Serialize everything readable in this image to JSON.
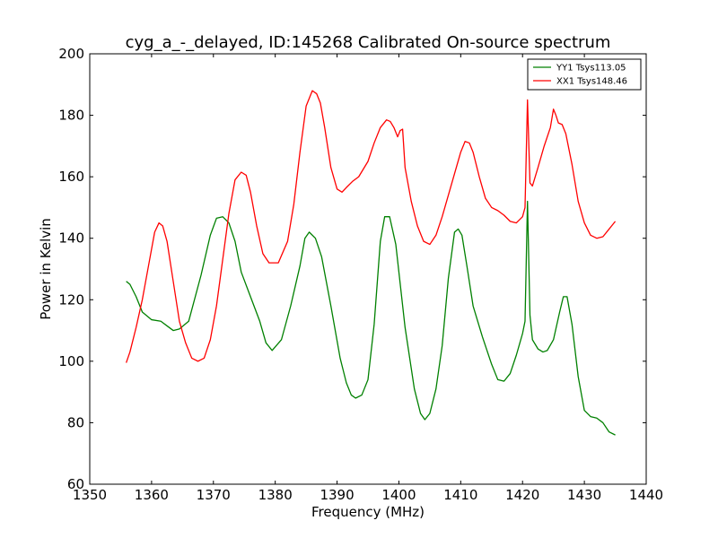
{
  "chart_data": {
    "type": "line",
    "title": "cyg_a_-_delayed, ID:145268 Calibrated On-source spectrum",
    "xlabel": "Frequency (MHz)",
    "ylabel": "Power in Kelvin",
    "xlim": [
      1350,
      1440
    ],
    "ylim": [
      60,
      200
    ],
    "xticks": [
      1350,
      1360,
      1370,
      1380,
      1390,
      1400,
      1410,
      1420,
      1430,
      1440
    ],
    "yticks": [
      60,
      80,
      100,
      120,
      140,
      160,
      180,
      200
    ],
    "grid": false,
    "legend_position": "top-right",
    "series": [
      {
        "name": "YY1 Tsys113.05",
        "color": "#008000",
        "x": [
          1355.9,
          1356.5,
          1357.5,
          1358.5,
          1360,
          1361.5,
          1362.5,
          1363.5,
          1364.5,
          1366,
          1368,
          1369.5,
          1370.5,
          1371.5,
          1372.5,
          1373.5,
          1374.5,
          1376,
          1377.5,
          1378.5,
          1379.5,
          1381,
          1382.5,
          1384,
          1384.8,
          1385.5,
          1386.5,
          1387.5,
          1389,
          1390.5,
          1391.5,
          1392.3,
          1393,
          1394,
          1395,
          1396,
          1397,
          1397.7,
          1398.5,
          1399.5,
          1401,
          1402.5,
          1403.5,
          1404.2,
          1405,
          1406,
          1407,
          1408,
          1409,
          1409.6,
          1410.2,
          1411,
          1412,
          1413.5,
          1415,
          1416,
          1417,
          1418,
          1419,
          1420,
          1420.4,
          1420.8,
          1421.2,
          1421.6,
          1422.5,
          1423.3,
          1424,
          1425,
          1426,
          1426.6,
          1427.2,
          1428,
          1429,
          1430,
          1431,
          1432,
          1433,
          1434,
          1435
        ],
        "values": [
          126,
          125,
          121,
          116,
          113.5,
          113,
          111.5,
          110,
          110.5,
          113,
          128,
          141,
          146.5,
          147,
          145,
          139,
          129,
          121,
          113,
          106,
          103.5,
          107,
          118,
          131,
          140,
          142,
          140,
          134,
          118,
          101,
          93,
          89,
          88,
          89,
          94,
          112,
          139,
          147,
          147,
          138,
          111,
          91,
          83,
          81,
          83,
          91,
          105,
          127,
          142,
          143,
          141,
          131,
          118,
          108,
          99,
          94,
          93.5,
          96,
          102,
          109,
          113,
          152,
          115,
          107,
          104,
          103,
          103.5,
          107,
          116,
          121,
          121,
          112,
          95,
          84,
          82,
          81.5,
          80,
          77,
          76
        ]
      },
      {
        "name": "XX1 Tsys148.46",
        "color": "#ff0000",
        "x": [
          1355.9,
          1356.5,
          1357.5,
          1358.5,
          1359.5,
          1360.5,
          1361.2,
          1361.8,
          1362.5,
          1363.5,
          1364.5,
          1365.5,
          1366.5,
          1367.5,
          1368.5,
          1369.5,
          1370.5,
          1371.5,
          1372.5,
          1373.5,
          1374.5,
          1375.3,
          1376,
          1377,
          1378,
          1379,
          1380.5,
          1382,
          1383,
          1384,
          1385,
          1386,
          1386.7,
          1387.3,
          1388,
          1389,
          1390,
          1390.8,
          1391.5,
          1392.5,
          1393.5,
          1395,
          1396,
          1397,
          1398,
          1398.6,
          1399.2,
          1399.8,
          1400.2,
          1400.6,
          1401,
          1402,
          1403,
          1404,
          1405,
          1406,
          1407,
          1408,
          1409,
          1410,
          1410.7,
          1411.4,
          1412,
          1413,
          1414,
          1415,
          1416,
          1417,
          1418,
          1419,
          1420,
          1420.4,
          1420.8,
          1421.2,
          1421.6,
          1422.5,
          1423.5,
          1424.5,
          1425,
          1425.4,
          1425.8,
          1426.4,
          1427,
          1428,
          1429,
          1430,
          1431,
          1432,
          1433,
          1434,
          1435
        ],
        "values": [
          99.5,
          103,
          111,
          120,
          131,
          142,
          145,
          144,
          139,
          126,
          113,
          106,
          101,
          100,
          101,
          107,
          118,
          133,
          148,
          159,
          161.5,
          160.5,
          155,
          144,
          135,
          132,
          132,
          139,
          151,
          168,
          183,
          188,
          187,
          184,
          176,
          163,
          156,
          155,
          156.5,
          158.5,
          160,
          165,
          171,
          176,
          178.5,
          178,
          176,
          173,
          175,
          175.5,
          163,
          152,
          144,
          139,
          138,
          141,
          147,
          154,
          161,
          168,
          171.5,
          171,
          168,
          160,
          153,
          150,
          149,
          147.5,
          145.5,
          145,
          147,
          150,
          185,
          158,
          157,
          163,
          170,
          176,
          182,
          180,
          177.5,
          177,
          174,
          164,
          152,
          145,
          141,
          140,
          140.5,
          143,
          145.5
        ]
      }
    ]
  }
}
